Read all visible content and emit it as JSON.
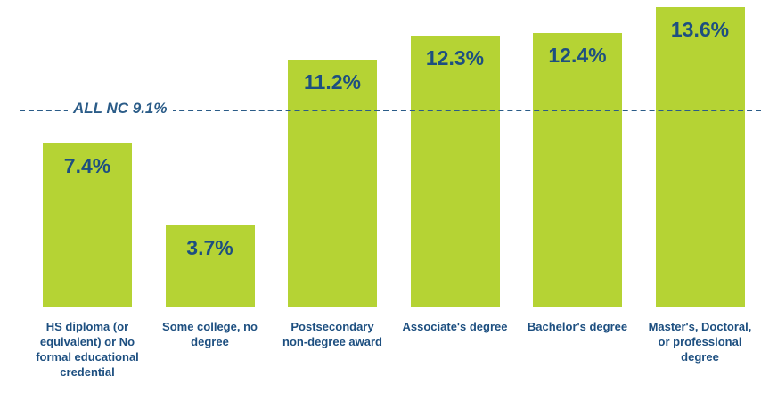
{
  "chart_data": {
    "type": "bar",
    "categories": [
      "HS diploma (or equivalent) or No formal educational credential",
      "Some college, no degree",
      "Postsecondary non-degree award",
      "Associate's degree",
      "Bachelor's degree",
      "Master's, Doctoral, or professional degree"
    ],
    "values": [
      7.4,
      3.7,
      11.2,
      12.3,
      12.4,
      13.6
    ],
    "value_labels": [
      "7.4%",
      "3.7%",
      "11.2%",
      "12.3%",
      "12.4%",
      "13.6%"
    ],
    "color": "#b5d334",
    "reference_line": {
      "value": 9.1,
      "label": "ALL NC 9.1%",
      "color": "#2b5c88"
    }
  }
}
